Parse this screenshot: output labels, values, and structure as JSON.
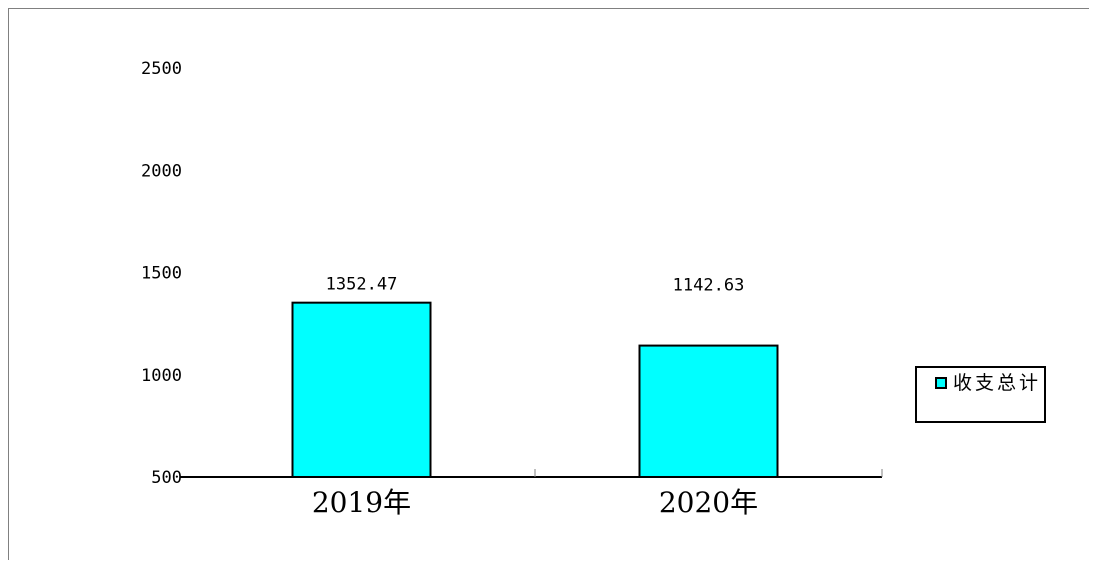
{
  "chart_data": {
    "type": "bar",
    "categories": [
      "2019年",
      "2020年"
    ],
    "series": [
      {
        "name": "收支总计",
        "values": [
          1352.47,
          1142.63
        ],
        "labels": [
          "1352.47",
          "1142.63"
        ]
      }
    ],
    "y_ticks": [
      "500",
      "1000",
      "1500",
      "2000",
      "2500"
    ],
    "ylim": [
      500,
      2500
    ],
    "grid": false,
    "legend_position": "right",
    "colors": {
      "bar": "#00FFFF",
      "border": "#000000",
      "frame": "#808080"
    }
  }
}
